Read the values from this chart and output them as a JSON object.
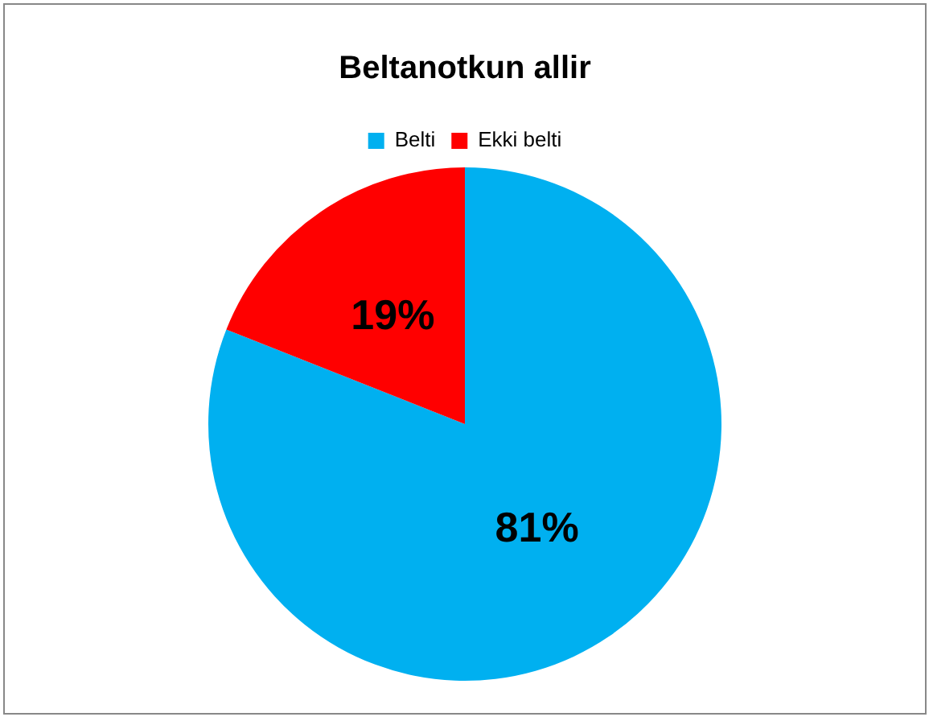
{
  "chart_data": {
    "type": "pie",
    "title": "Beltanotkun allir",
    "categories": [
      "Belti",
      "Ekki belti"
    ],
    "values": [
      81,
      19
    ],
    "colors": [
      "#00b0f0",
      "#ff0000"
    ],
    "value_labels": [
      "81%",
      "19%"
    ],
    "legend": "top"
  }
}
